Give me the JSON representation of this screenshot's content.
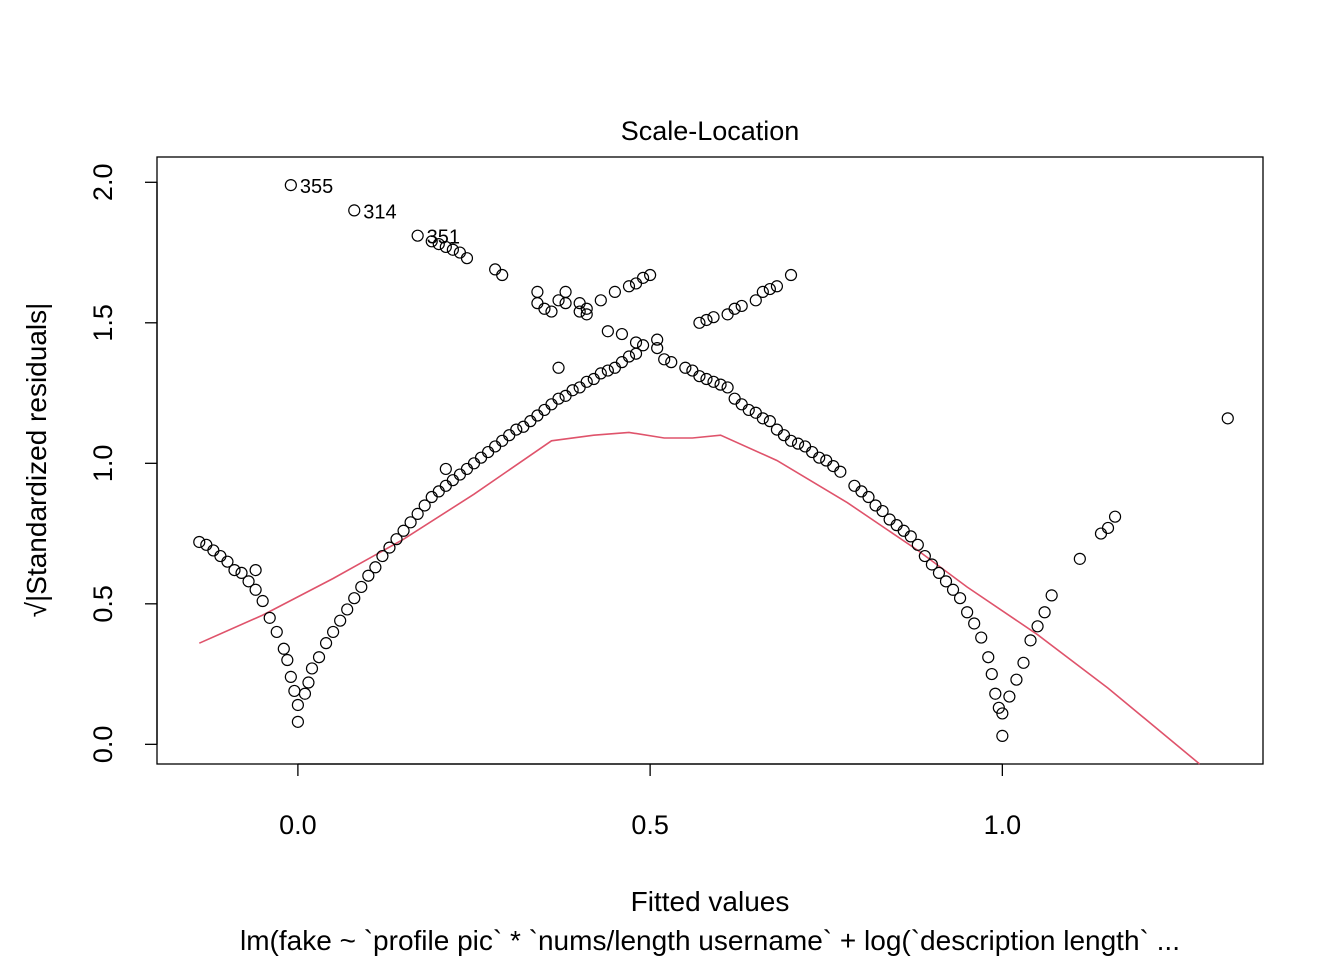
{
  "chart_data": {
    "type": "scatter",
    "title": "Scale-Location",
    "xlabel": "Fitted values",
    "ylabel_radical": "√",
    "ylabel": "|Standardized residuals|",
    "subtitle": "lm(fake ~ `profile pic` * `nums/length username` + log(`description length` ...",
    "xlim": [
      -0.2,
      1.37
    ],
    "ylim": [
      -0.07,
      2.09
    ],
    "x_ticks": [
      0.0,
      0.5,
      1.0
    ],
    "x_tick_labels": [
      "0.0",
      "0.5",
      "1.0"
    ],
    "y_ticks": [
      0.0,
      0.5,
      1.0,
      1.5,
      2.0
    ],
    "y_tick_labels": [
      "0.0",
      "0.5",
      "1.0",
      "1.5",
      "2.0"
    ],
    "grid": false,
    "point_style": "open-circle",
    "smoother_color": "#DF536B",
    "labeled_points": [
      {
        "x": -0.01,
        "y": 1.99,
        "label": "355"
      },
      {
        "x": 0.08,
        "y": 1.9,
        "label": "314"
      },
      {
        "x": 0.17,
        "y": 1.81,
        "label": "351"
      }
    ],
    "upper_arm_points": [
      [
        0.19,
        1.79
      ],
      [
        0.2,
        1.78
      ],
      [
        0.21,
        1.77
      ],
      [
        0.22,
        1.76
      ],
      [
        0.23,
        1.75
      ],
      [
        0.24,
        1.73
      ],
      [
        0.28,
        1.69
      ],
      [
        0.29,
        1.67
      ],
      [
        0.34,
        1.61
      ],
      [
        0.37,
        1.58
      ],
      [
        0.38,
        1.57
      ],
      [
        0.4,
        1.54
      ],
      [
        0.41,
        1.53
      ],
      [
        0.44,
        1.47
      ],
      [
        0.46,
        1.46
      ],
      [
        0.48,
        1.43
      ],
      [
        0.49,
        1.42
      ],
      [
        0.51,
        1.41
      ],
      [
        0.51,
        1.44
      ],
      [
        0.52,
        1.37
      ],
      [
        0.53,
        1.36
      ],
      [
        0.55,
        1.34
      ],
      [
        0.56,
        1.33
      ],
      [
        0.57,
        1.31
      ],
      [
        0.58,
        1.3
      ],
      [
        0.59,
        1.29
      ],
      [
        0.6,
        1.28
      ],
      [
        0.61,
        1.27
      ],
      [
        0.62,
        1.23
      ],
      [
        0.63,
        1.21
      ],
      [
        0.64,
        1.19
      ],
      [
        0.65,
        1.18
      ],
      [
        0.66,
        1.16
      ],
      [
        0.67,
        1.15
      ],
      [
        0.68,
        1.12
      ],
      [
        0.69,
        1.1
      ],
      [
        0.7,
        1.08
      ],
      [
        0.71,
        1.07
      ],
      [
        0.72,
        1.06
      ],
      [
        0.73,
        1.04
      ],
      [
        0.74,
        1.02
      ],
      [
        0.75,
        1.01
      ],
      [
        0.76,
        0.99
      ],
      [
        0.77,
        0.97
      ],
      [
        0.79,
        0.92
      ],
      [
        0.8,
        0.9
      ],
      [
        0.81,
        0.88
      ],
      [
        0.82,
        0.85
      ],
      [
        0.83,
        0.83
      ],
      [
        0.84,
        0.8
      ],
      [
        0.85,
        0.78
      ],
      [
        0.86,
        0.76
      ],
      [
        0.87,
        0.74
      ],
      [
        0.88,
        0.71
      ],
      [
        0.89,
        0.67
      ],
      [
        0.9,
        0.64
      ],
      [
        0.91,
        0.61
      ],
      [
        0.92,
        0.58
      ],
      [
        0.93,
        0.55
      ],
      [
        0.94,
        0.52
      ],
      [
        0.95,
        0.47
      ],
      [
        0.96,
        0.43
      ],
      [
        0.97,
        0.38
      ],
      [
        0.98,
        0.31
      ],
      [
        0.985,
        0.25
      ],
      [
        0.99,
        0.18
      ],
      [
        0.995,
        0.13
      ],
      [
        1.0,
        0.11
      ],
      [
        1.0,
        0.03
      ],
      [
        1.01,
        0.17
      ],
      [
        1.02,
        0.23
      ],
      [
        1.03,
        0.29
      ],
      [
        1.04,
        0.37
      ],
      [
        1.05,
        0.42
      ],
      [
        1.06,
        0.47
      ],
      [
        1.07,
        0.53
      ],
      [
        1.11,
        0.66
      ],
      [
        1.14,
        0.75
      ],
      [
        1.15,
        0.77
      ],
      [
        1.16,
        0.81
      ],
      [
        1.32,
        1.16
      ]
    ],
    "lower_arm_points": [
      [
        0.34,
        1.57
      ],
      [
        0.35,
        1.55
      ],
      [
        0.36,
        1.54
      ],
      [
        0.38,
        1.61
      ],
      [
        0.4,
        1.57
      ],
      [
        0.41,
        1.55
      ],
      [
        0.43,
        1.58
      ],
      [
        0.45,
        1.61
      ],
      [
        0.47,
        1.63
      ],
      [
        0.48,
        1.64
      ],
      [
        0.49,
        1.66
      ],
      [
        0.5,
        1.67
      ],
      [
        0.57,
        1.5
      ],
      [
        0.58,
        1.51
      ],
      [
        0.59,
        1.52
      ],
      [
        0.61,
        1.53
      ],
      [
        0.62,
        1.55
      ],
      [
        0.63,
        1.56
      ],
      [
        0.65,
        1.58
      ],
      [
        0.66,
        1.61
      ],
      [
        0.67,
        1.62
      ],
      [
        0.68,
        1.63
      ],
      [
        0.7,
        1.67
      ]
    ],
    "left_arm_points": [
      [
        -0.14,
        0.72
      ],
      [
        -0.13,
        0.71
      ],
      [
        -0.12,
        0.69
      ],
      [
        -0.11,
        0.67
      ],
      [
        -0.1,
        0.65
      ],
      [
        -0.09,
        0.62
      ],
      [
        -0.08,
        0.61
      ],
      [
        -0.07,
        0.58
      ],
      [
        -0.06,
        0.55
      ],
      [
        -0.05,
        0.51
      ],
      [
        -0.04,
        0.45
      ],
      [
        -0.03,
        0.4
      ],
      [
        -0.02,
        0.34
      ],
      [
        -0.015,
        0.3
      ],
      [
        -0.01,
        0.24
      ],
      [
        -0.005,
        0.19
      ],
      [
        0.0,
        0.14
      ],
      [
        0.0,
        0.08
      ],
      [
        0.01,
        0.18
      ],
      [
        0.015,
        0.22
      ],
      [
        0.02,
        0.27
      ],
      [
        0.03,
        0.31
      ],
      [
        0.04,
        0.36
      ],
      [
        0.05,
        0.4
      ],
      [
        0.06,
        0.44
      ],
      [
        0.07,
        0.48
      ],
      [
        0.08,
        0.52
      ],
      [
        0.09,
        0.56
      ],
      [
        0.1,
        0.6
      ],
      [
        0.11,
        0.63
      ],
      [
        0.12,
        0.67
      ],
      [
        0.13,
        0.7
      ],
      [
        0.14,
        0.73
      ],
      [
        0.15,
        0.76
      ],
      [
        0.16,
        0.79
      ],
      [
        0.17,
        0.82
      ],
      [
        0.18,
        0.85
      ],
      [
        0.19,
        0.88
      ],
      [
        0.2,
        0.9
      ],
      [
        0.21,
        0.92
      ],
      [
        0.22,
        0.94
      ],
      [
        0.23,
        0.96
      ],
      [
        0.24,
        0.98
      ],
      [
        0.25,
        1.0
      ],
      [
        0.26,
        1.02
      ],
      [
        0.27,
        1.04
      ],
      [
        0.28,
        1.06
      ],
      [
        0.29,
        1.08
      ],
      [
        0.3,
        1.1
      ],
      [
        0.31,
        1.12
      ],
      [
        0.32,
        1.13
      ],
      [
        0.33,
        1.15
      ],
      [
        0.34,
        1.17
      ],
      [
        0.35,
        1.19
      ],
      [
        0.36,
        1.21
      ],
      [
        0.37,
        1.23
      ],
      [
        0.38,
        1.24
      ],
      [
        0.39,
        1.26
      ],
      [
        0.4,
        1.27
      ],
      [
        0.41,
        1.29
      ],
      [
        0.42,
        1.3
      ],
      [
        0.43,
        1.32
      ],
      [
        0.44,
        1.33
      ],
      [
        0.45,
        1.34
      ],
      [
        0.46,
        1.36
      ],
      [
        0.47,
        1.38
      ],
      [
        0.48,
        1.39
      ],
      [
        -0.06,
        0.62
      ],
      [
        0.21,
        0.98
      ],
      [
        0.37,
        1.34
      ]
    ],
    "smoother": [
      [
        -0.14,
        0.36
      ],
      [
        -0.05,
        0.46
      ],
      [
        0.05,
        0.59
      ],
      [
        0.15,
        0.73
      ],
      [
        0.25,
        0.89
      ],
      [
        0.36,
        1.08
      ],
      [
        0.42,
        1.1
      ],
      [
        0.47,
        1.11
      ],
      [
        0.52,
        1.09
      ],
      [
        0.56,
        1.09
      ],
      [
        0.6,
        1.1
      ],
      [
        0.68,
        1.01
      ],
      [
        0.78,
        0.86
      ],
      [
        0.88,
        0.69
      ],
      [
        0.95,
        0.56
      ],
      [
        1.05,
        0.39
      ],
      [
        1.15,
        0.2
      ],
      [
        1.28,
        -0.07
      ]
    ]
  }
}
